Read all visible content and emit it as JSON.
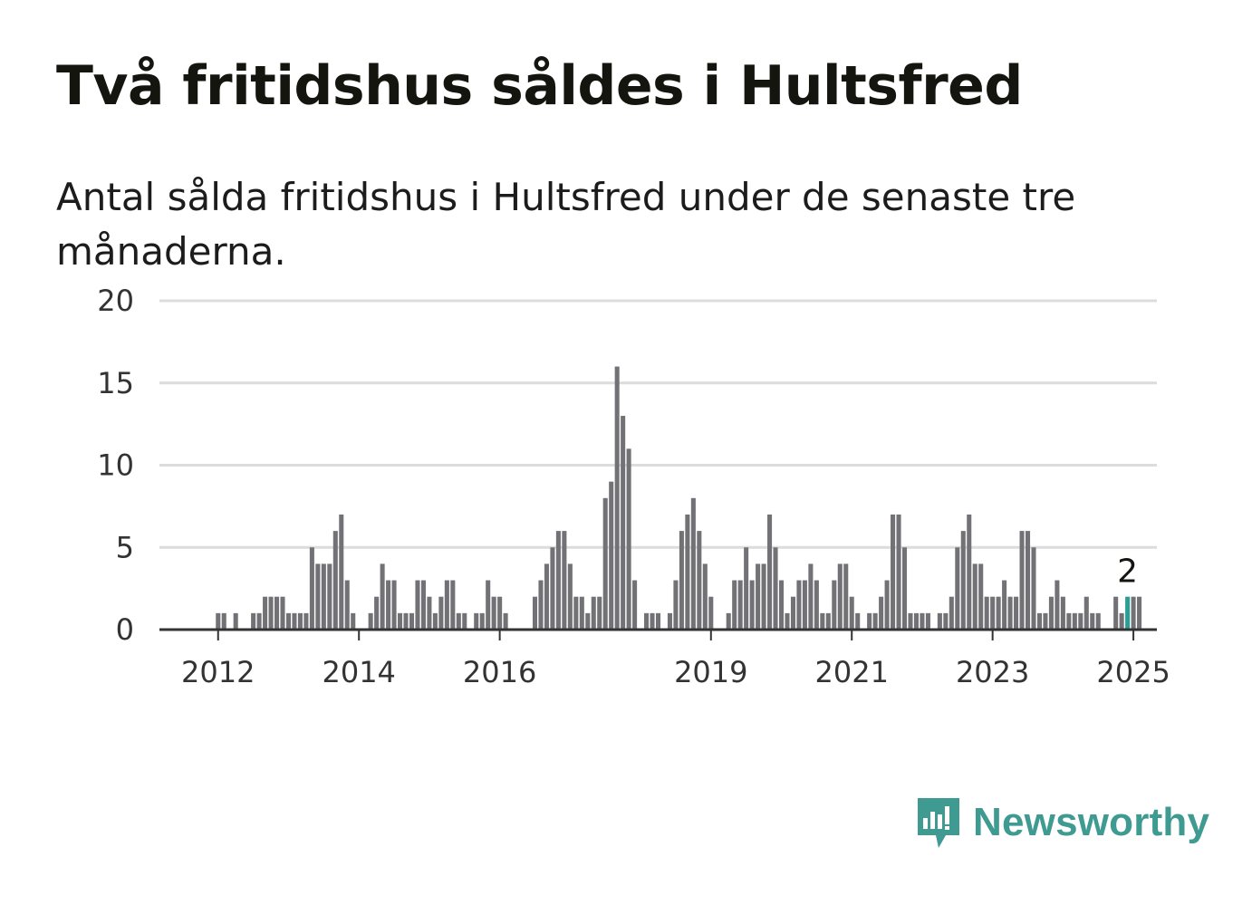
{
  "title": "Två fritidshus såldes i Hultsfred",
  "subtitle": "Antal sålda fritidshus i Hultsfred under de senaste tre månaderna.",
  "brand": {
    "name": "Newsworthy",
    "color": "#3f9a91",
    "icon": "newsworthy-logo-icon"
  },
  "colors": {
    "bar": "#727176",
    "highlight": "#2a9d94",
    "grid": "#dcdcdc",
    "axis": "#333333"
  },
  "chart_data": {
    "type": "bar",
    "ylim": [
      0,
      20
    ],
    "yticks": [
      0,
      5,
      10,
      15,
      20
    ],
    "xticks": [
      {
        "year": 2012,
        "label": "2012"
      },
      {
        "year": 2014,
        "label": "2014"
      },
      {
        "year": 2016,
        "label": "2016"
      },
      {
        "year": 2019,
        "label": "2019"
      },
      {
        "year": 2021,
        "label": "2021"
      },
      {
        "year": 2023,
        "label": "2023"
      },
      {
        "year": 2025,
        "label": "2025"
      }
    ],
    "x_start": "2011-03",
    "x_end": "2025-05",
    "start_month": "2011-12",
    "values": [
      0,
      1,
      1,
      0,
      1,
      0,
      0,
      1,
      1,
      2,
      2,
      2,
      2,
      1,
      1,
      1,
      1,
      5,
      4,
      4,
      4,
      6,
      7,
      3,
      1,
      0,
      0,
      1,
      2,
      4,
      3,
      3,
      1,
      1,
      1,
      3,
      3,
      2,
      1,
      2,
      3,
      3,
      1,
      1,
      0,
      1,
      1,
      3,
      2,
      2,
      1,
      0,
      0,
      0,
      0,
      2,
      3,
      4,
      5,
      6,
      6,
      4,
      2,
      2,
      1,
      2,
      2,
      8,
      9,
      16,
      13,
      11,
      3,
      0,
      1,
      1,
      1,
      0,
      1,
      3,
      6,
      7,
      8,
      6,
      4,
      2,
      0,
      0,
      1,
      3,
      3,
      5,
      3,
      4,
      4,
      7,
      5,
      3,
      1,
      2,
      3,
      3,
      4,
      3,
      1,
      1,
      3,
      4,
      4,
      2,
      1,
      0,
      1,
      1,
      2,
      3,
      7,
      7,
      5,
      1,
      1,
      1,
      1,
      0,
      1,
      1,
      2,
      5,
      6,
      7,
      4,
      4,
      2,
      2,
      2,
      3,
      2,
      2,
      6,
      6,
      5,
      1,
      1,
      2,
      3,
      2,
      1,
      1,
      1,
      2,
      1,
      1,
      0,
      0,
      2,
      1,
      2,
      2,
      2
    ],
    "highlight": {
      "month": "2024-12",
      "value": 2,
      "label": "2"
    }
  }
}
